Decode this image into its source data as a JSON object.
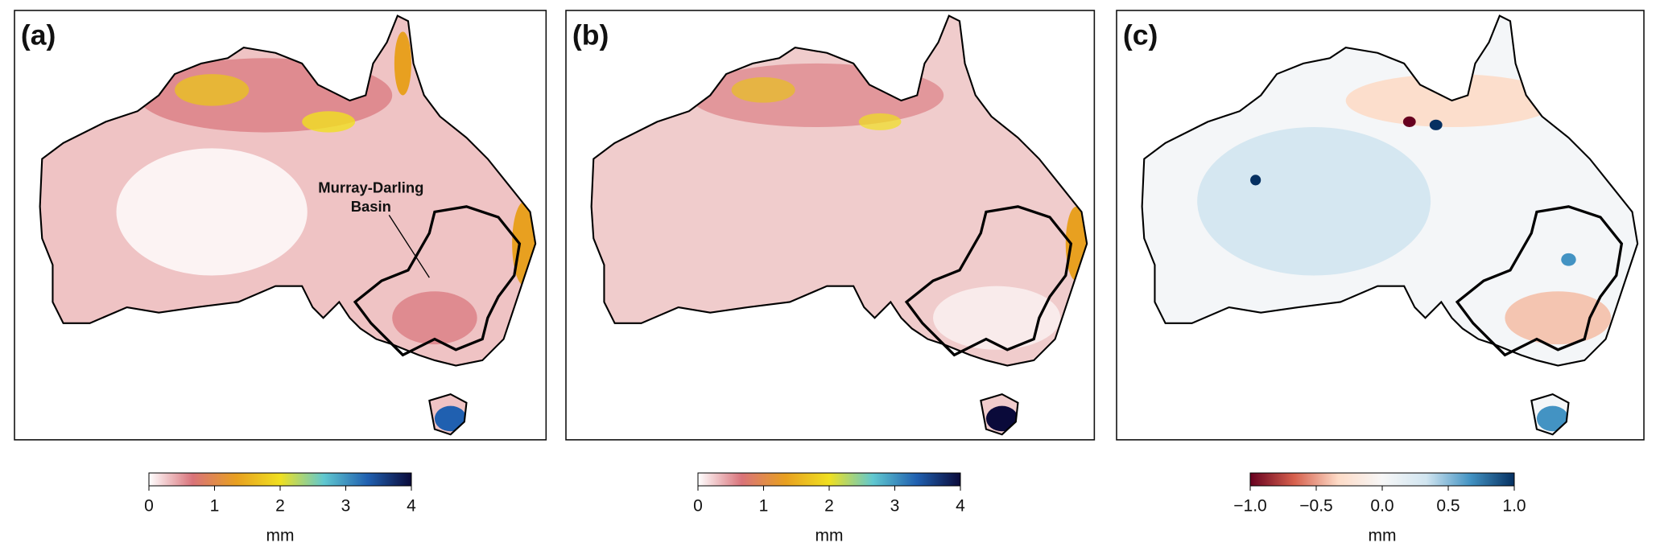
{
  "panels": [
    {
      "label": "(a)",
      "annotation": [
        "Murray-Darling",
        "Basin"
      ],
      "colorbar": {
        "label": "mm",
        "lim": [
          0,
          4
        ],
        "ticks": [
          0,
          1,
          2,
          3,
          4
        ],
        "colors": [
          "#ffffff",
          "#d9737a",
          "#e8a020",
          "#f0e020",
          "#60c8d0",
          "#2060b0",
          "#0a0a3a"
        ]
      }
    },
    {
      "label": "(b)",
      "colorbar": {
        "label": "mm",
        "lim": [
          0,
          4
        ],
        "ticks": [
          0,
          1,
          2,
          3,
          4
        ],
        "colors": [
          "#ffffff",
          "#d9737a",
          "#e8a020",
          "#f0e020",
          "#60c8d0",
          "#2060b0",
          "#0a0a3a"
        ]
      }
    },
    {
      "label": "(c)",
      "colorbar": {
        "label": "mm",
        "lim": [
          -1,
          1
        ],
        "ticks": [
          {
            "value": -1,
            "label": "−1.0"
          },
          {
            "value": -0.5,
            "label": "−0.5"
          },
          {
            "value": 0,
            "label": "0.0"
          },
          0.5,
          {
            "value": 1,
            "label": "1.0"
          }
        ],
        "colors": [
          "#67001f",
          "#d6604d",
          "#fddbc7",
          "#f7f7f7",
          "#d1e5f0",
          "#4393c3",
          "#053061"
        ]
      }
    }
  ]
}
